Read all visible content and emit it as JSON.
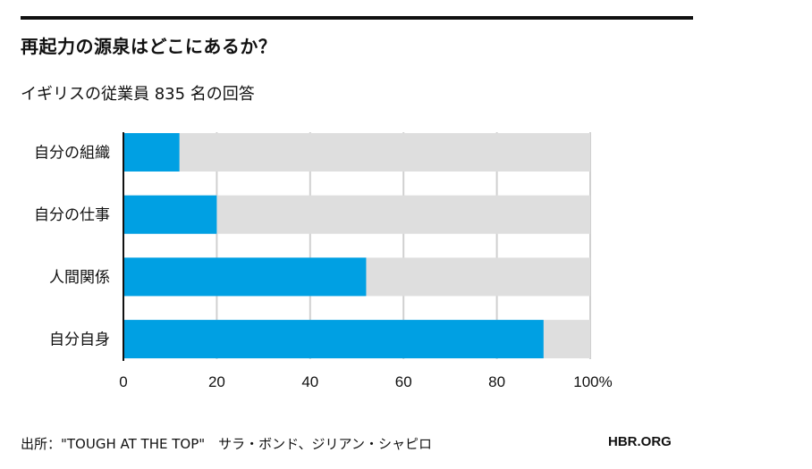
{
  "header": {
    "title": "再起力の源泉はどこにあるか？",
    "subtitle": "イギリスの従業員 835 名の回答"
  },
  "footer": {
    "source": "出所：\"TOUGH AT THE TOP\"　サラ・ボンド、ジリアン・シャピロ",
    "brand": "HBR.ORG"
  },
  "colors": {
    "bar": "#00a0e3",
    "track": "#dedede",
    "grid": "#d0d0d0"
  },
  "chart_data": {
    "type": "bar",
    "orientation": "horizontal",
    "title": "再起力の源泉はどこにあるか？",
    "subtitle": "イギリスの従業員 835 名の回答",
    "categories": [
      "自分の組織",
      "自分の仕事",
      "人間関係",
      "自分自身"
    ],
    "values": [
      12,
      20,
      52,
      90
    ],
    "xlim": [
      0,
      100
    ],
    "ticks": [
      0,
      20,
      40,
      60,
      80,
      100
    ],
    "tick_labels": [
      "0",
      "20",
      "40",
      "60",
      "80",
      "100%"
    ],
    "grid": true
  }
}
